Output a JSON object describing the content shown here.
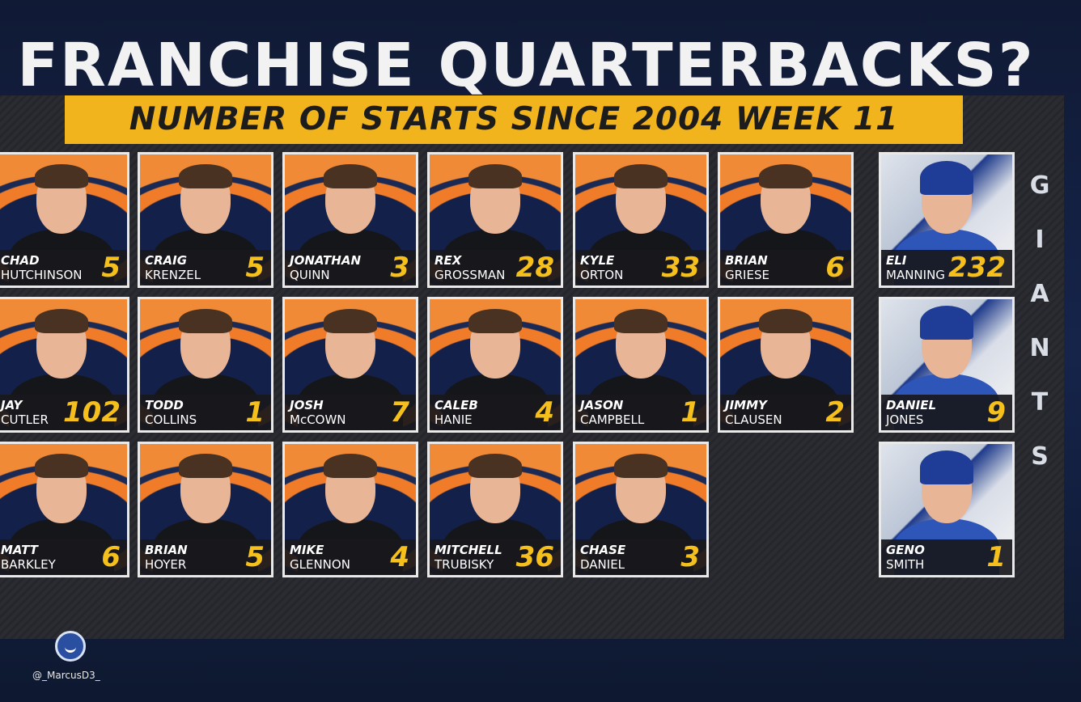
{
  "title": "FRANCHISE QUARTERBACKS?",
  "subtitle": "NUMBER OF STARTS SINCE 2004 WEEK 11",
  "bears_players": [
    {
      "first": "CHAD",
      "last": "HUTCHINSON",
      "starts": 5
    },
    {
      "first": "CRAIG",
      "last": "KRENZEL",
      "starts": 5
    },
    {
      "first": "JONATHAN",
      "last": "QUINN",
      "starts": 3
    },
    {
      "first": "REX",
      "last": "GROSSMAN",
      "starts": 28
    },
    {
      "first": "KYLE",
      "last": "ORTON",
      "starts": 33
    },
    {
      "first": "BRIAN",
      "last": "GRIESE",
      "starts": 6
    },
    {
      "first": "JAY",
      "last": "CUTLER",
      "starts": 102
    },
    {
      "first": "TODD",
      "last": "COLLINS",
      "starts": 1
    },
    {
      "first": "JOSH",
      "last": "McCOWN",
      "starts": 7
    },
    {
      "first": "CALEB",
      "last": "HANIE",
      "starts": 4
    },
    {
      "first": "JASON",
      "last": "CAMPBELL",
      "starts": 1
    },
    {
      "first": "JIMMY",
      "last": "CLAUSEN",
      "starts": 2
    },
    {
      "first": "MATT",
      "last": "BARKLEY",
      "starts": 6
    },
    {
      "first": "BRIAN",
      "last": "HOYER",
      "starts": 5
    },
    {
      "first": "MIKE",
      "last": "GLENNON",
      "starts": 4
    },
    {
      "first": "MITCHELL",
      "last": "TRUBISKY",
      "starts": 36
    },
    {
      "first": "CHASE",
      "last": "DANIEL",
      "starts": 3
    }
  ],
  "giants_players": [
    {
      "first": "ELI",
      "last": "MANNING",
      "starts": 232
    },
    {
      "first": "DANIEL",
      "last": "JONES",
      "starts": 9
    },
    {
      "first": "GENO",
      "last": "SMITH",
      "starts": 1
    }
  ],
  "side_label": "GIANTS",
  "watermark": "@_MarcusD3_"
}
